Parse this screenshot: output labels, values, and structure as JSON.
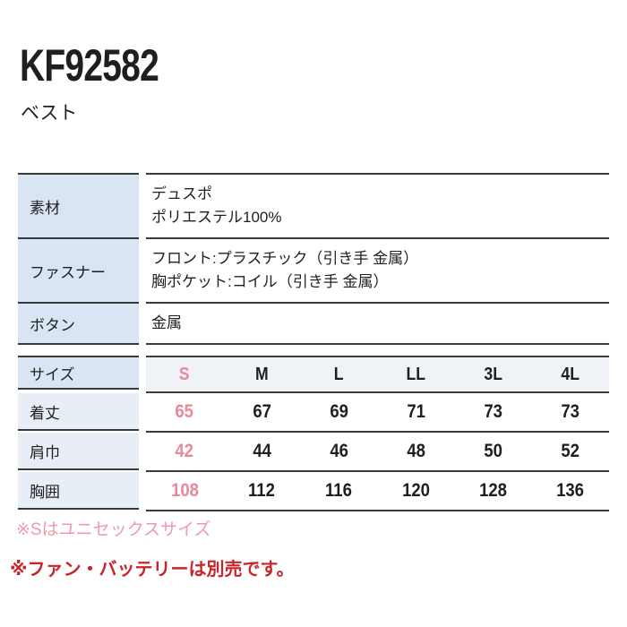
{
  "product": {
    "code": "KF92582",
    "category": "ベスト"
  },
  "spec_table": {
    "rows": [
      {
        "label": "素材",
        "line1": "デュスポ",
        "line2": "ポリエステル100%"
      },
      {
        "label": "ファスナー",
        "line1": "フロント:プラスチック（引き手 金属）",
        "line2": "胸ポケット:コイル（引き手 金属）"
      },
      {
        "label": "ボタン",
        "line1": "金属"
      }
    ]
  },
  "size_table": {
    "header_label": "サイズ",
    "columns": [
      "S",
      "M",
      "L",
      "LL",
      "3L",
      "4L"
    ],
    "highlighted_column": "S",
    "rows": [
      {
        "label": "着丈",
        "values": [
          "65",
          "67",
          "69",
          "71",
          "73",
          "73"
        ]
      },
      {
        "label": "肩巾",
        "values": [
          "42",
          "44",
          "46",
          "48",
          "50",
          "52"
        ]
      },
      {
        "label": "胸囲",
        "values": [
          "108",
          "112",
          "116",
          "120",
          "128",
          "136"
        ]
      }
    ]
  },
  "notes": {
    "unisex": "※Sはユニセックスサイズ",
    "sold_separately": "※ファン・バッテリーは別売です。"
  },
  "colors": {
    "highlight_pink": "#e8889a",
    "note_pink": "#ef9aa8",
    "warning_red": "#c9242b",
    "spec_label_cell_bg": "#d9e5f2",
    "size_label_cell_bg": "#e7eef6",
    "size_header_row_bg": "#eff3f8",
    "rule_line": "#3a3a3a"
  }
}
